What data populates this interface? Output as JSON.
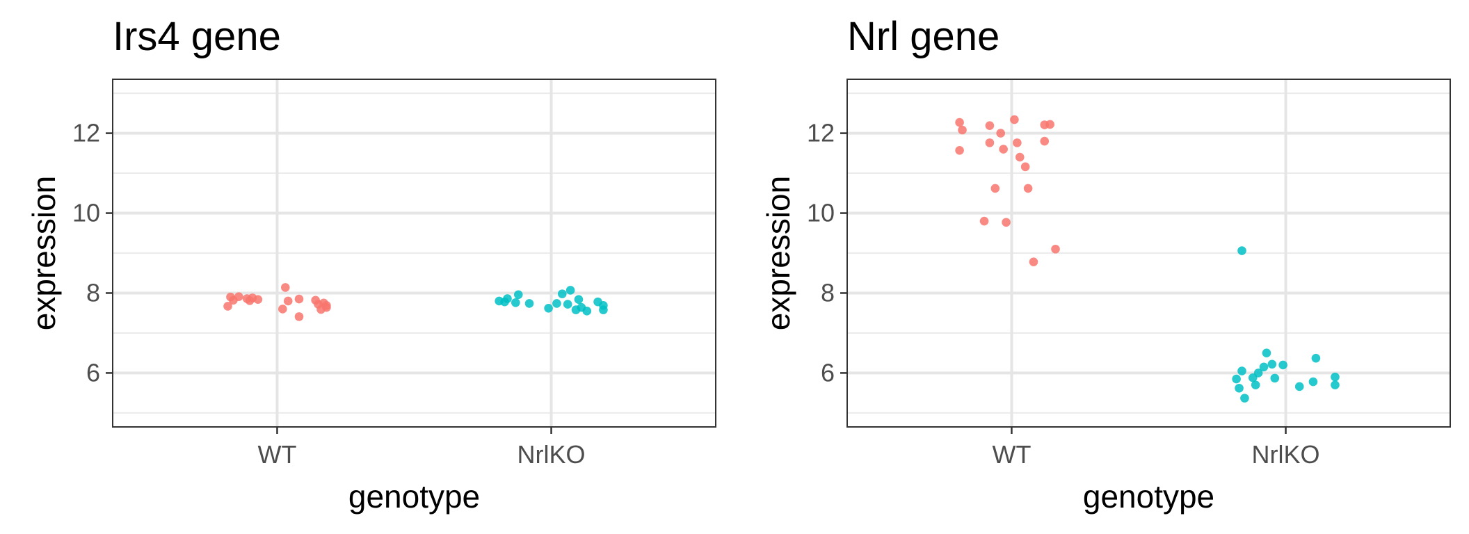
{
  "chart_data": [
    {
      "type": "scatter",
      "title": "Irs4 gene",
      "xlabel": "genotype",
      "ylabel": "expression",
      "categories": [
        "WT",
        "NrlKO"
      ],
      "ylim": [
        4.65,
        13.35
      ],
      "yticks": [
        6,
        8,
        10,
        12
      ],
      "grid": true,
      "series": [
        {
          "category": "WT",
          "color": "#f8766d",
          "points": [
            {
              "x": -0.18,
              "y": 7.67
            },
            {
              "x": -0.17,
              "y": 7.9
            },
            {
              "x": -0.16,
              "y": 7.82
            },
            {
              "x": -0.14,
              "y": 7.91
            },
            {
              "x": -0.11,
              "y": 7.86
            },
            {
              "x": -0.1,
              "y": 7.81
            },
            {
              "x": -0.09,
              "y": 7.88
            },
            {
              "x": -0.07,
              "y": 7.84
            },
            {
              "x": 0.02,
              "y": 7.6
            },
            {
              "x": 0.03,
              "y": 8.14
            },
            {
              "x": 0.04,
              "y": 7.8
            },
            {
              "x": 0.08,
              "y": 7.41
            },
            {
              "x": 0.08,
              "y": 7.85
            },
            {
              "x": 0.14,
              "y": 7.82
            },
            {
              "x": 0.15,
              "y": 7.72
            },
            {
              "x": 0.16,
              "y": 7.59
            },
            {
              "x": 0.17,
              "y": 7.75
            },
            {
              "x": 0.18,
              "y": 7.64
            },
            {
              "x": 0.18,
              "y": 7.69
            }
          ]
        },
        {
          "category": "NrlKO",
          "color": "#00bfc4",
          "points": [
            {
              "x": -0.19,
              "y": 7.8
            },
            {
              "x": -0.17,
              "y": 7.78
            },
            {
              "x": -0.16,
              "y": 7.86
            },
            {
              "x": -0.13,
              "y": 7.76
            },
            {
              "x": -0.12,
              "y": 7.96
            },
            {
              "x": -0.08,
              "y": 7.74
            },
            {
              "x": -0.01,
              "y": 7.62
            },
            {
              "x": 0.02,
              "y": 7.74
            },
            {
              "x": 0.04,
              "y": 7.98
            },
            {
              "x": 0.06,
              "y": 7.72
            },
            {
              "x": 0.07,
              "y": 8.07
            },
            {
              "x": 0.09,
              "y": 7.58
            },
            {
              "x": 0.1,
              "y": 7.84
            },
            {
              "x": 0.11,
              "y": 7.64
            },
            {
              "x": 0.13,
              "y": 7.55
            },
            {
              "x": 0.17,
              "y": 7.78
            },
            {
              "x": 0.19,
              "y": 7.69
            },
            {
              "x": 0.19,
              "y": 7.58
            }
          ]
        }
      ]
    },
    {
      "type": "scatter",
      "title": "Nrl gene",
      "xlabel": "genotype",
      "ylabel": "expression",
      "categories": [
        "WT",
        "NrlKO"
      ],
      "ylim": [
        4.65,
        13.35
      ],
      "yticks": [
        6,
        8,
        10,
        12
      ],
      "grid": true,
      "series": [
        {
          "category": "WT",
          "color": "#f8766d",
          "points": [
            {
              "x": -0.19,
              "y": 12.27
            },
            {
              "x": -0.19,
              "y": 11.57
            },
            {
              "x": -0.18,
              "y": 12.08
            },
            {
              "x": -0.1,
              "y": 9.8
            },
            {
              "x": -0.08,
              "y": 11.76
            },
            {
              "x": -0.08,
              "y": 12.19
            },
            {
              "x": -0.06,
              "y": 10.62
            },
            {
              "x": -0.04,
              "y": 12.0
            },
            {
              "x": -0.03,
              "y": 11.6
            },
            {
              "x": -0.02,
              "y": 9.77
            },
            {
              "x": 0.01,
              "y": 12.34
            },
            {
              "x": 0.02,
              "y": 11.76
            },
            {
              "x": 0.03,
              "y": 11.4
            },
            {
              "x": 0.05,
              "y": 11.16
            },
            {
              "x": 0.06,
              "y": 10.62
            },
            {
              "x": 0.08,
              "y": 8.78
            },
            {
              "x": 0.12,
              "y": 12.21
            },
            {
              "x": 0.12,
              "y": 11.8
            },
            {
              "x": 0.14,
              "y": 12.22
            },
            {
              "x": 0.16,
              "y": 9.1
            }
          ]
        },
        {
          "category": "NrlKO",
          "color": "#00bfc4",
          "points": [
            {
              "x": -0.18,
              "y": 5.85
            },
            {
              "x": -0.17,
              "y": 5.62
            },
            {
              "x": -0.16,
              "y": 6.05
            },
            {
              "x": -0.16,
              "y": 9.06
            },
            {
              "x": -0.15,
              "y": 5.37
            },
            {
              "x": -0.12,
              "y": 5.88
            },
            {
              "x": -0.11,
              "y": 5.7
            },
            {
              "x": -0.1,
              "y": 6.0
            },
            {
              "x": -0.08,
              "y": 6.15
            },
            {
              "x": -0.07,
              "y": 6.5
            },
            {
              "x": -0.05,
              "y": 6.22
            },
            {
              "x": -0.04,
              "y": 5.87
            },
            {
              "x": -0.01,
              "y": 6.2
            },
            {
              "x": 0.05,
              "y": 5.66
            },
            {
              "x": 0.1,
              "y": 5.78
            },
            {
              "x": 0.11,
              "y": 6.37
            },
            {
              "x": 0.18,
              "y": 5.9
            },
            {
              "x": 0.18,
              "y": 5.7
            }
          ]
        }
      ]
    }
  ]
}
